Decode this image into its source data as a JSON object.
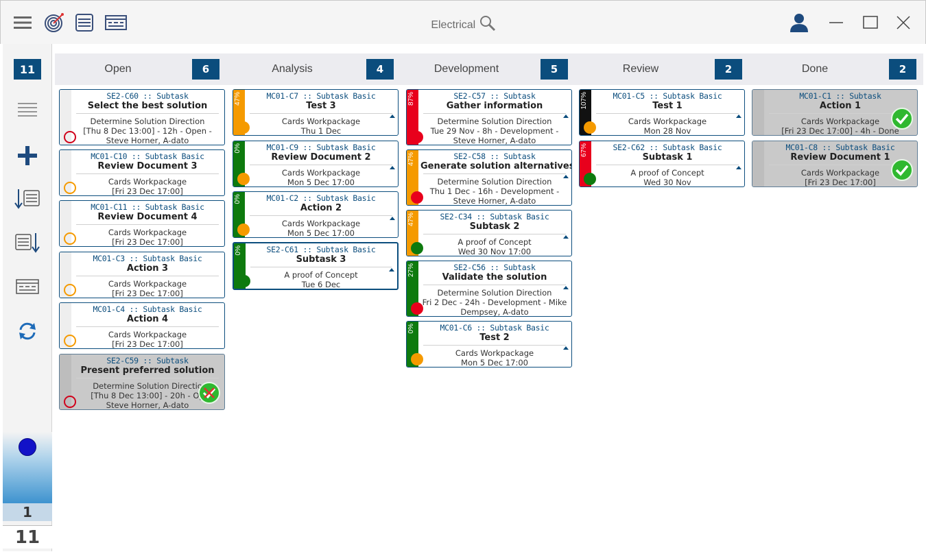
{
  "app": {
    "title": "Electrical"
  },
  "sidebar": {
    "total_count": "11",
    "page_current": "1",
    "page_total": "11"
  },
  "columns": [
    {
      "title": "Open",
      "count": "6"
    },
    {
      "title": "Analysis",
      "count": "4"
    },
    {
      "title": "Development",
      "count": "5"
    },
    {
      "title": "Review",
      "count": "2"
    },
    {
      "title": "Done",
      "count": "2"
    }
  ],
  "cards": {
    "open": [
      {
        "id": "SE2-C60 :: Subtask",
        "name": "Select the best solution",
        "lines": [
          "Determine Solution Direction",
          "[Thu 8 Dec 13:00] - 12h - Open -",
          "Steve Horner, A-dato"
        ],
        "status": "red-ring"
      },
      {
        "id": "MC01-C10 :: Subtask Basic",
        "name": "Review Document 3",
        "lines": [
          "Cards Workpackage",
          "[Fri 23 Dec 17:00]"
        ],
        "status": "orange-ring"
      },
      {
        "id": "MC01-C11 :: Subtask Basic",
        "name": "Review Document 4",
        "lines": [
          "Cards Workpackage",
          "[Fri 23 Dec 17:00]"
        ],
        "status": "orange-ring"
      },
      {
        "id": "MC01-C3 :: Subtask Basic",
        "name": "Action 3",
        "lines": [
          "Cards Workpackage",
          "[Fri 23 Dec 17:00]"
        ],
        "status": "orange-ring"
      },
      {
        "id": "MC01-C4 :: Subtask Basic",
        "name": "Action 4",
        "lines": [
          "Cards Workpackage",
          "[Fri 23 Dec 17:00]"
        ],
        "status": "orange-ring"
      },
      {
        "id": "SE2-C59 :: Subtask",
        "name": "Present preferred solution",
        "lines": [
          "Determine Solution Directio",
          "[Thu 8 Dec 13:00] - 20h - Op",
          "Steve Horner, A-dato"
        ],
        "status": "red-ring"
      }
    ],
    "analysis": [
      {
        "id": "MC01-C7 :: Subtask Basic",
        "name": "Test 3",
        "lines": [
          "Cards Workpackage",
          "Thu 1 Dec"
        ],
        "progress": "47%",
        "status": "orange"
      },
      {
        "id": "MC01-C9 :: Subtask Basic",
        "name": "Review Document 2",
        "lines": [
          "Cards Workpackage",
          "Mon 5 Dec 17:00"
        ],
        "progress": "0%",
        "status": "orange"
      },
      {
        "id": "MC01-C2 :: Subtask Basic",
        "name": "Action 2",
        "lines": [
          "Cards Workpackage",
          "Mon 5 Dec 17:00"
        ],
        "progress": "0%",
        "status": "orange"
      },
      {
        "id": "SE2-C61 :: Subtask Basic",
        "name": "Subtask 3",
        "lines": [
          "A proof of Concept",
          "Tue 6 Dec"
        ],
        "progress": "0%",
        "status": "green"
      }
    ],
    "development": [
      {
        "id": "SE2-C57 :: Subtask",
        "name": "Gather information",
        "lines": [
          "Determine Solution Direction",
          "Tue 29 Nov - 8h - Development -",
          "Steve Horner, A-dato"
        ],
        "progress": "87%",
        "status": "red"
      },
      {
        "id": "SE2-C58 :: Subtask",
        "name": "Generate solution alternatives",
        "lines": [
          "Determine Solution Direction",
          "Thu 1 Dec - 16h - Development -",
          "Steve Horner, A-dato"
        ],
        "progress": "47%",
        "status": "red"
      },
      {
        "id": "SE2-C34 :: Subtask Basic",
        "name": "Subtask 2",
        "lines": [
          "A proof of Concept",
          "Wed 30 Nov 17:00"
        ],
        "progress": "47%",
        "status": "green"
      },
      {
        "id": "SE2-C56 :: Subtask",
        "name": "Validate the solution",
        "lines": [
          "Determine Solution Direction",
          "Fri 2 Dec - 24h - Development - Mike",
          "Dempsey, A-dato"
        ],
        "progress": "27%",
        "status": "red"
      },
      {
        "id": "MC01-C6 :: Subtask Basic",
        "name": "Test 2",
        "lines": [
          "Cards Workpackage",
          "Mon 5 Dec 17:00"
        ],
        "progress": "0%",
        "status": "orange"
      }
    ],
    "review": [
      {
        "id": "MC01-C5 :: Subtask Basic",
        "name": "Test 1",
        "lines": [
          "Cards Workpackage",
          "Mon 28 Nov"
        ],
        "progress": "107%",
        "status": "orange"
      },
      {
        "id": "SE2-C62 :: Subtask Basic",
        "name": "Subtask 1",
        "lines": [
          "A proof of Concept",
          "Wed 30 Nov"
        ],
        "progress": "67%",
        "status": "green"
      }
    ],
    "done": [
      {
        "id": "MC01-C1 :: Subtask",
        "name": "Action 1",
        "lines": [
          "Cards Workpackage",
          "[Fri 23 Dec 17:00] - 4h - Done"
        ]
      },
      {
        "id": "MC01-C8 :: Subtask Basic",
        "name": "Review Document 1",
        "lines": [
          "Cards Workpackage",
          "[Fri 23 Dec 17:00]"
        ]
      }
    ]
  },
  "colors": {
    "accent": "#0b4d7d",
    "orange": "#f59a00",
    "red": "#e8001c",
    "green": "#0e7a0e",
    "black": "#111111"
  }
}
